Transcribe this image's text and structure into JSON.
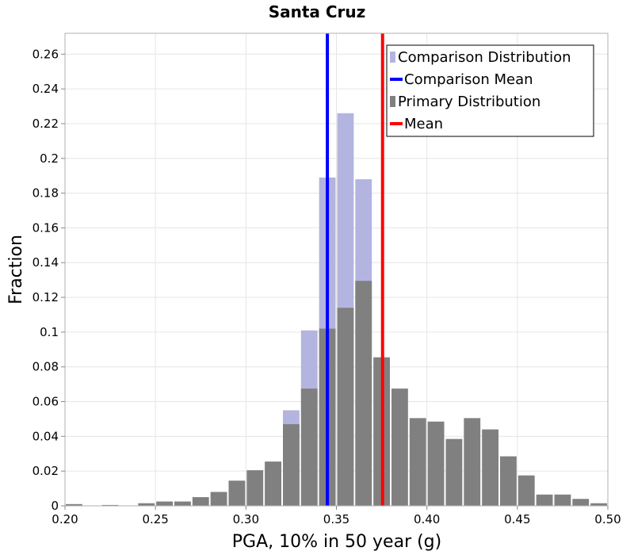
{
  "chart_data": {
    "type": "bar",
    "title": "Santa Cruz",
    "xlabel": "PGA, 10% in 50 year (g)",
    "ylabel": "Fraction",
    "xlim": [
      0.2,
      0.5
    ],
    "ylim": [
      0,
      0.272
    ],
    "bin_width": 0.01,
    "x_ticks": [
      "0.20",
      "0.25",
      "0.30",
      "0.35",
      "0.40",
      "0.45",
      "0.50"
    ],
    "y_ticks": [
      "0",
      "0.02",
      "0.04",
      "0.06",
      "0.08",
      "0.1",
      "0.12",
      "0.14",
      "0.16",
      "0.18",
      "0.2",
      "0.22",
      "0.24",
      "0.26"
    ],
    "grid": true,
    "legend_position": "top-right",
    "colors": {
      "primary": "#808080",
      "comparison": "#b4b4e0",
      "comparison_mean": "#0000ff",
      "mean": "#ff0000",
      "grid": "#e6e6e6",
      "frame": "#b0b0b0"
    },
    "legend": [
      {
        "label": "Comparison Distribution",
        "key": "comparison",
        "kind": "bar"
      },
      {
        "label": "Comparison Mean",
        "key": "comparison_mean",
        "kind": "line"
      },
      {
        "label": "Primary Distribution",
        "key": "primary",
        "kind": "bar"
      },
      {
        "label": "Mean",
        "key": "mean",
        "kind": "line"
      }
    ],
    "series": [
      {
        "name": "Comparison Distribution",
        "bins": [
          {
            "x": 0.31,
            "value": 0.025
          },
          {
            "x": 0.32,
            "value": 0.055
          },
          {
            "x": 0.33,
            "value": 0.101
          },
          {
            "x": 0.34,
            "value": 0.189
          },
          {
            "x": 0.35,
            "value": 0.226
          },
          {
            "x": 0.36,
            "value": 0.188
          }
        ]
      },
      {
        "name": "Primary Distribution",
        "bins": [
          {
            "x": 0.2,
            "value": 0.001
          },
          {
            "x": 0.21,
            "value": 0.0
          },
          {
            "x": 0.22,
            "value": 0.0005
          },
          {
            "x": 0.23,
            "value": 0.0
          },
          {
            "x": 0.24,
            "value": 0.0015
          },
          {
            "x": 0.25,
            "value": 0.0025
          },
          {
            "x": 0.26,
            "value": 0.0025
          },
          {
            "x": 0.27,
            "value": 0.005
          },
          {
            "x": 0.28,
            "value": 0.008
          },
          {
            "x": 0.29,
            "value": 0.0145
          },
          {
            "x": 0.3,
            "value": 0.0205
          },
          {
            "x": 0.31,
            "value": 0.0255
          },
          {
            "x": 0.32,
            "value": 0.047
          },
          {
            "x": 0.33,
            "value": 0.0675
          },
          {
            "x": 0.34,
            "value": 0.102
          },
          {
            "x": 0.35,
            "value": 0.114
          },
          {
            "x": 0.36,
            "value": 0.1295
          },
          {
            "x": 0.37,
            "value": 0.0855
          },
          {
            "x": 0.38,
            "value": 0.0675
          },
          {
            "x": 0.39,
            "value": 0.0505
          },
          {
            "x": 0.4,
            "value": 0.0485
          },
          {
            "x": 0.41,
            "value": 0.0385
          },
          {
            "x": 0.42,
            "value": 0.0505
          },
          {
            "x": 0.43,
            "value": 0.044
          },
          {
            "x": 0.44,
            "value": 0.0285
          },
          {
            "x": 0.45,
            "value": 0.0175
          },
          {
            "x": 0.46,
            "value": 0.0065
          },
          {
            "x": 0.47,
            "value": 0.0065
          },
          {
            "x": 0.48,
            "value": 0.004
          },
          {
            "x": 0.49,
            "value": 0.0015
          }
        ]
      }
    ],
    "vertical_lines": [
      {
        "name": "Comparison Mean",
        "x": 0.345,
        "key": "comparison_mean"
      },
      {
        "name": "Mean",
        "x": 0.3755,
        "key": "mean"
      }
    ]
  }
}
